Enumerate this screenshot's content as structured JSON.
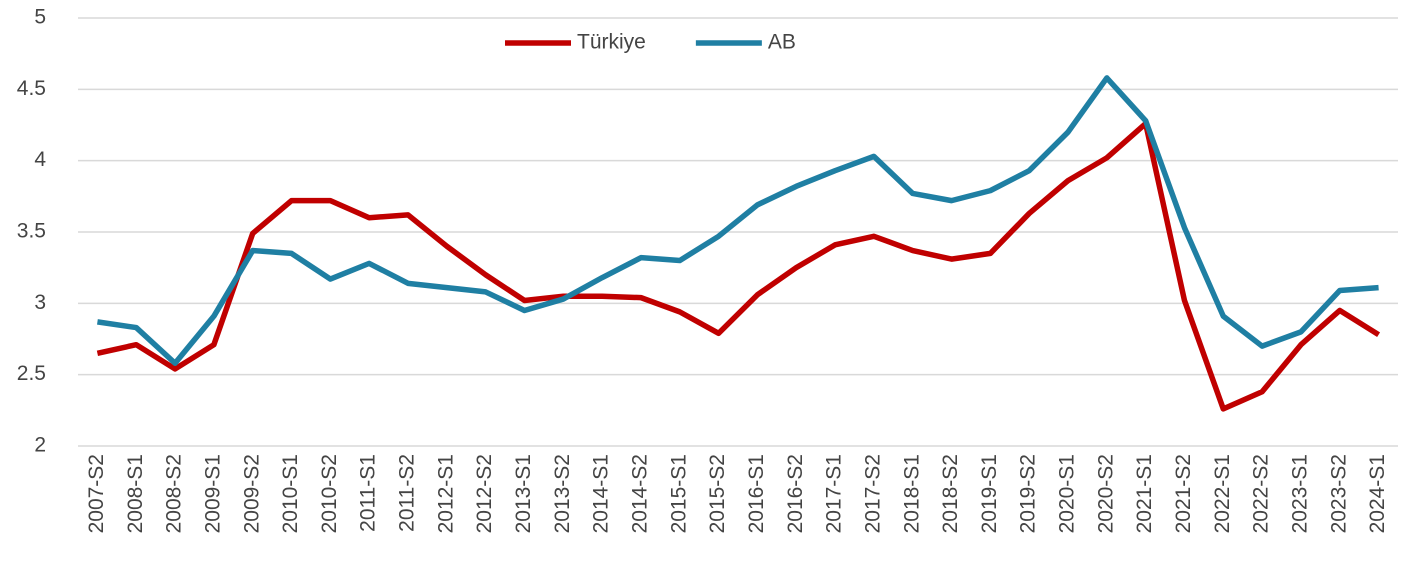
{
  "chart_data": {
    "type": "line",
    "categories": [
      "2007-S2",
      "2008-S1",
      "2008-S2",
      "2009-S1",
      "2009-S2",
      "2010-S1",
      "2010-S2",
      "2011-S1",
      "2011-S2",
      "2012-S1",
      "2012-S2",
      "2013-S1",
      "2013-S2",
      "2014-S1",
      "2014-S2",
      "2015-S1",
      "2015-S2",
      "2016-S1",
      "2016-S2",
      "2017-S1",
      "2017-S2",
      "2018-S1",
      "2018-S2",
      "2019-S1",
      "2019-S2",
      "2020-S1",
      "2020-S2",
      "2021-S1",
      "2021-S2",
      "2022-S1",
      "2022-S2",
      "2023-S1",
      "2023-S2",
      "2024-S1"
    ],
    "series": [
      {
        "name": "Türkiye",
        "color": "#c00000",
        "values": [
          2.65,
          2.71,
          2.54,
          2.71,
          3.49,
          3.72,
          3.72,
          3.6,
          3.62,
          3.4,
          3.2,
          3.02,
          3.05,
          3.05,
          3.04,
          2.94,
          2.79,
          3.06,
          3.25,
          3.41,
          3.47,
          3.37,
          3.31,
          3.35,
          3.63,
          3.86,
          4.02,
          4.26,
          3.02,
          2.26,
          2.38,
          2.71,
          2.95,
          2.78
        ]
      },
      {
        "name": "AB",
        "color": "#1f7fa3",
        "values": [
          2.87,
          2.83,
          2.58,
          2.91,
          3.37,
          3.35,
          3.17,
          3.28,
          3.14,
          3.11,
          3.08,
          2.95,
          3.03,
          3.18,
          3.32,
          3.3,
          3.47,
          3.69,
          3.82,
          3.93,
          4.03,
          3.77,
          3.72,
          3.79,
          3.93,
          4.2,
          4.58,
          4.28,
          3.53,
          2.91,
          2.7,
          2.8,
          3.09,
          3.11
        ]
      }
    ],
    "ylim": [
      2,
      5
    ],
    "yticks": [
      2,
      2.5,
      3,
      3.5,
      4,
      4.5,
      5
    ],
    "grid": true,
    "legend": "top"
  }
}
